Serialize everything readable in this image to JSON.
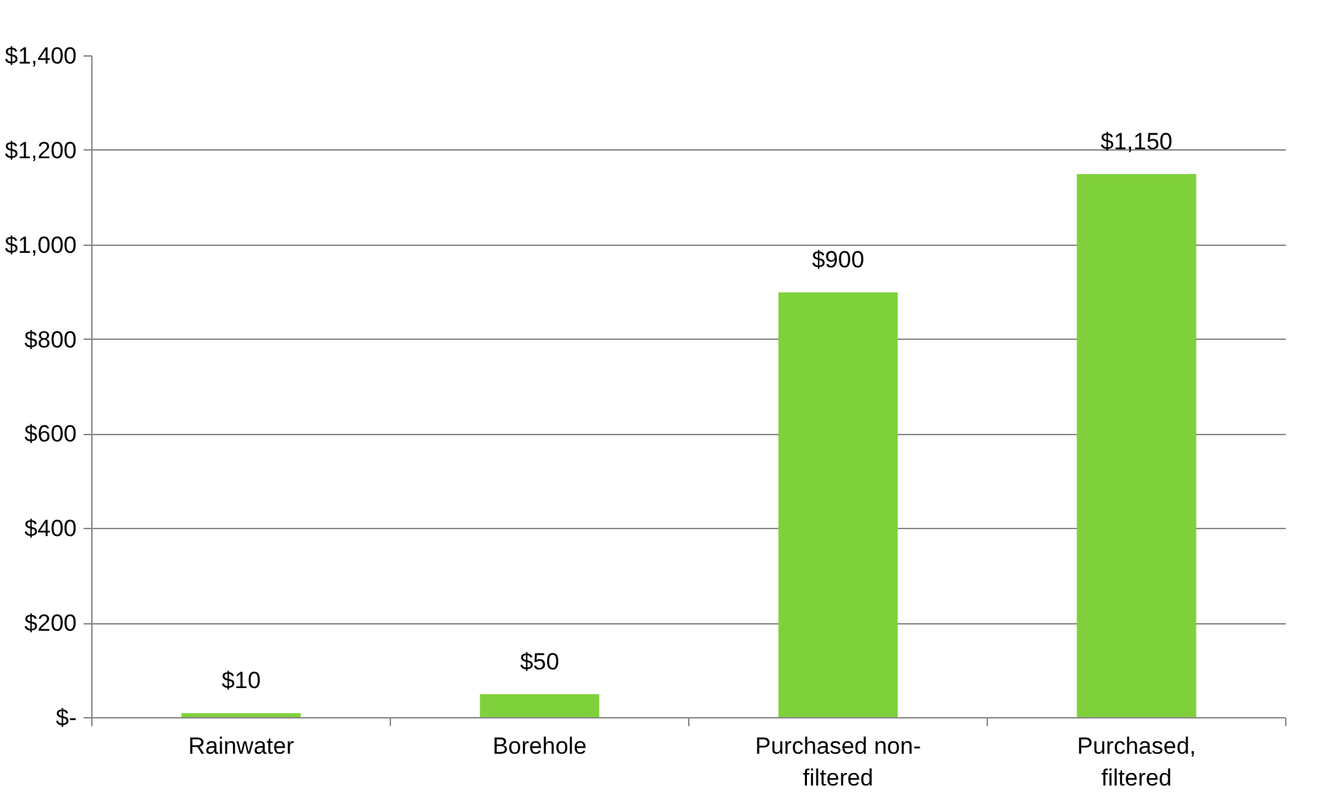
{
  "chart_data": {
    "type": "bar",
    "categories": [
      "Rainwater",
      "Borehole",
      "Purchased non-\nfiltered",
      "Purchased,\nfiltered"
    ],
    "values": [
      10,
      50,
      900,
      1150
    ],
    "value_labels": [
      "$10",
      "$50",
      "$900",
      "$1,150"
    ],
    "color": "#7fd13b",
    "ylim": [
      0,
      1400
    ],
    "yticks": [
      {
        "value": 0,
        "label": "$-"
      },
      {
        "value": 200,
        "label": "$200"
      },
      {
        "value": 400,
        "label": "$400"
      },
      {
        "value": 600,
        "label": "$600"
      },
      {
        "value": 800,
        "label": "$800"
      },
      {
        "value": 1000,
        "label": "$1,000"
      },
      {
        "value": 1200,
        "label": "$1,200"
      },
      {
        "value": 1400,
        "label": "$1,400"
      }
    ],
    "grid": "y"
  }
}
